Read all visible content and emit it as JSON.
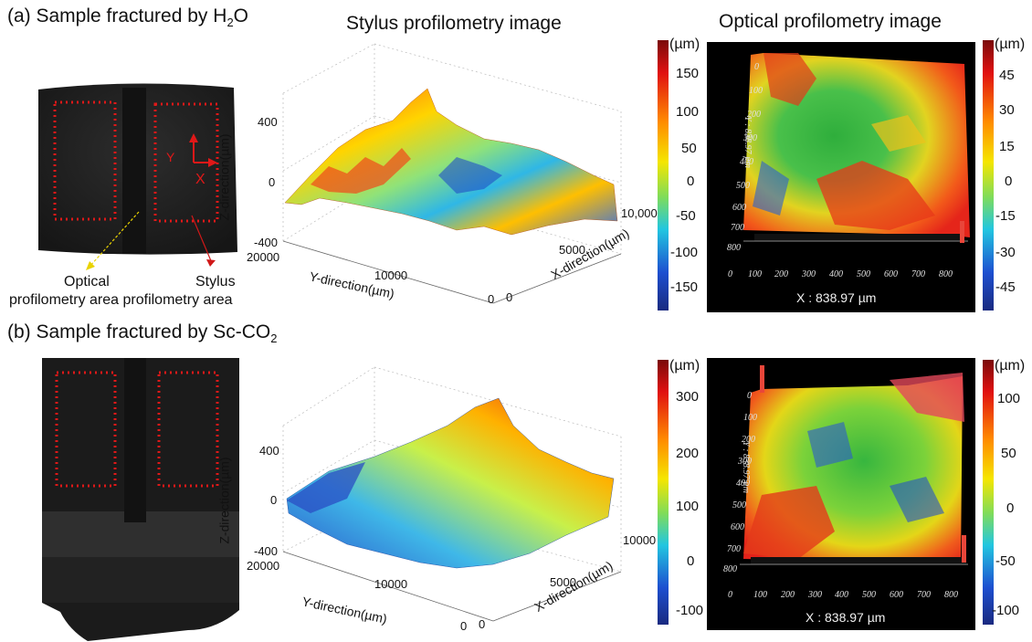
{
  "panel_a": {
    "title": "(a) Sample fractured by H",
    "title_sub": "2",
    "title_end": "O",
    "label_optical": "Optical",
    "label_stylus": "Stylus",
    "label_areas": "profilometry area profilometry area",
    "coord_y": "Y",
    "coord_x": "X",
    "stylus": {
      "z_label": "Z-direction(µm)",
      "y_label": "Y-direction(µm)",
      "x_label": "X-direction(µm)",
      "z_ticks": [
        "400",
        "0",
        "-400"
      ],
      "y_ticks": [
        "20000",
        "10000",
        "0"
      ],
      "x_ticks": [
        "10,000",
        "5000",
        "0"
      ]
    },
    "cb1": {
      "unit": "(µm)",
      "ticks": [
        "150",
        "100",
        "50",
        "0",
        "-50",
        "-100",
        "-150"
      ]
    },
    "cb2": {
      "unit": "(µm)",
      "ticks": [
        "45",
        "30",
        "15",
        "0",
        "-15",
        "-30",
        "-45"
      ]
    },
    "optical": {
      "x_readout": "X : 838.97 µm",
      "y_readout": "Y : 838.97 µm",
      "x_ticks": [
        "0",
        "100",
        "200",
        "300",
        "400",
        "500",
        "600",
        "700",
        "800"
      ],
      "y_ticks": [
        "0",
        "100",
        "200",
        "300",
        "400",
        "500",
        "600",
        "700",
        "800"
      ]
    }
  },
  "panel_b": {
    "title": "(b) Sample fractured by Sc-CO",
    "title_sub": "2",
    "stylus": {
      "z_label": "Z-direction(µm)",
      "y_label": "Y-direction(µm)",
      "x_label": "X-direction(µm)",
      "z_ticks": [
        "400",
        "0",
        "-400"
      ],
      "y_ticks": [
        "20000",
        "10000",
        "0"
      ],
      "x_ticks": [
        "10000",
        "5000",
        "0"
      ]
    },
    "cb1": {
      "unit": "(µm)",
      "ticks": [
        "300",
        "200",
        "100",
        "0",
        "-100"
      ]
    },
    "cb2": {
      "unit": "(µm)",
      "ticks": [
        "100",
        "50",
        "0",
        "-50",
        "-100"
      ]
    },
    "optical": {
      "x_readout": "X : 838.97 µm",
      "y_readout": "Y : 838.97 µm",
      "x_ticks": [
        "0",
        "100",
        "200",
        "300",
        "400",
        "500",
        "600",
        "700",
        "800"
      ],
      "y_ticks": [
        "0",
        "100",
        "200",
        "300",
        "400",
        "500",
        "600",
        "700",
        "800"
      ]
    }
  },
  "column_titles": {
    "stylus": "Stylus profilometry image",
    "optical": "Optical profilometry image"
  }
}
